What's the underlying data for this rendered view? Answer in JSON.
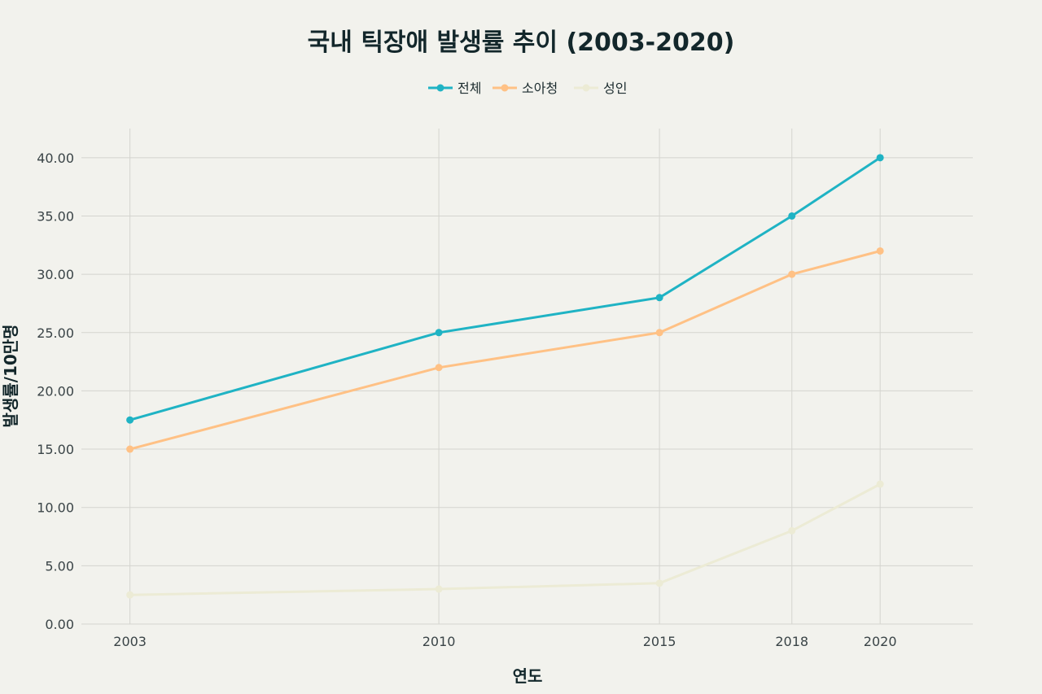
{
  "chart_data": {
    "type": "line",
    "title": "국내 틱장애 발생률 추이 (2003-2020)",
    "xlabel": "연도",
    "ylabel": "발생률/10만명",
    "x": [
      2003,
      2010,
      2015,
      2018,
      2020
    ],
    "x_tick_labels": [
      "2003",
      "2010",
      "2015",
      "2018",
      "2020"
    ],
    "xlim": [
      2001.9,
      2022.1
    ],
    "ylim": [
      0,
      42.5
    ],
    "y_ticks": [
      0,
      5,
      10,
      15,
      20,
      25,
      30,
      35,
      40
    ],
    "y_tick_labels": [
      "0.00",
      "5.00",
      "10.00",
      "15.00",
      "20.00",
      "25.00",
      "30.00",
      "35.00",
      "40.00"
    ],
    "grid": true,
    "legend_position": "top-center",
    "series": [
      {
        "name": "전체",
        "color": "#1fb3c4",
        "values": [
          17.5,
          25,
          28,
          35,
          40
        ]
      },
      {
        "name": "소아청",
        "color": "#ffc185",
        "values": [
          15,
          22,
          25,
          30,
          32
        ]
      },
      {
        "name": "성인",
        "color": "#ecebd5",
        "values": [
          2.5,
          3,
          3.5,
          8,
          12
        ]
      }
    ]
  }
}
